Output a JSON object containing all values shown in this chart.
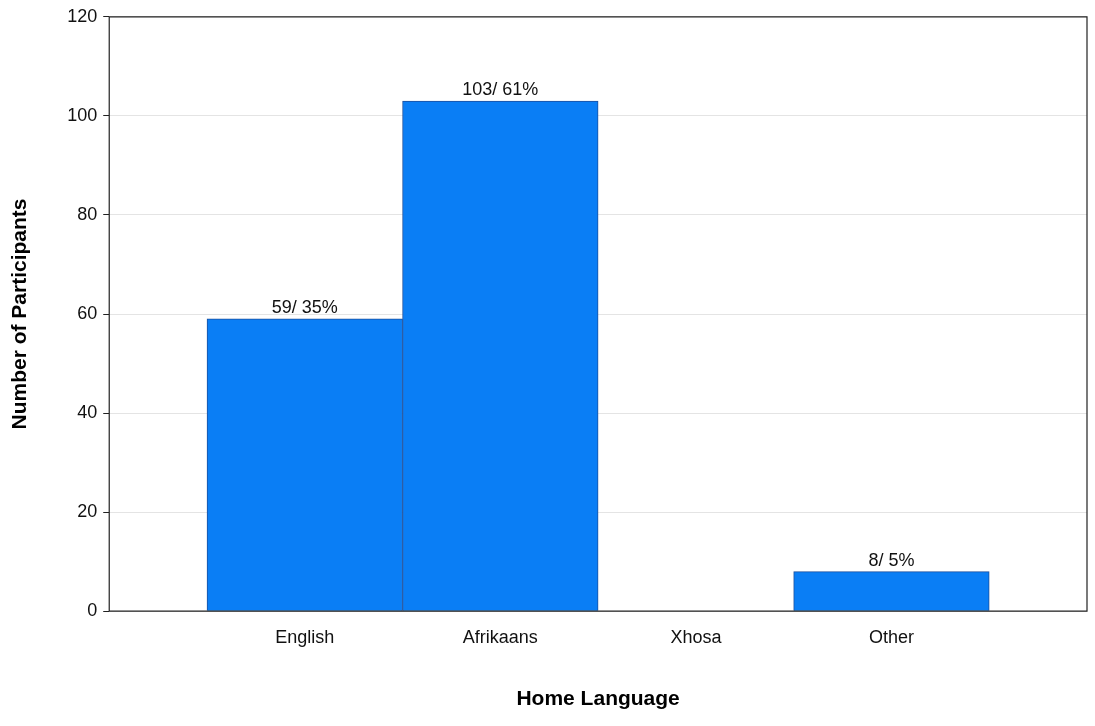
{
  "chart_data": {
    "type": "bar",
    "xlabel": "Home Language",
    "ylabel": "Number of Participants",
    "categories": [
      null,
      "English",
      "Afrikaans",
      "Xhosa",
      "Other",
      null
    ],
    "values": [
      null,
      59,
      103,
      0,
      8,
      null
    ],
    "value_labels": [
      null,
      "59/ 35%",
      "103/ 61%",
      null,
      "8/ 5%",
      null
    ],
    "color": "#0a7ef5",
    "ylim": [
      0,
      120
    ],
    "yticks": [
      0,
      20,
      40,
      60,
      80,
      100,
      120
    ],
    "grid": "y",
    "legend": false
  }
}
